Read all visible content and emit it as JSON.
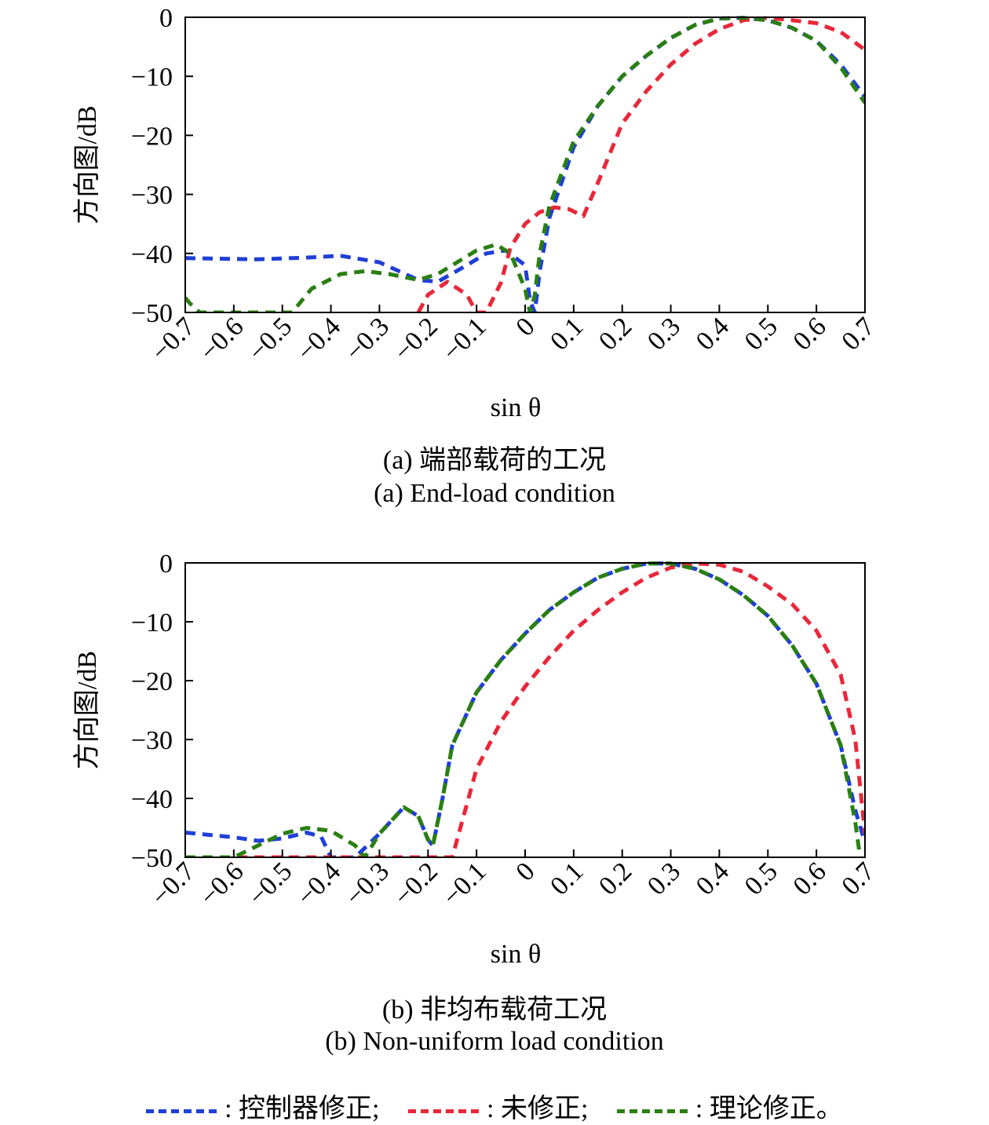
{
  "chart_data": [
    {
      "type": "line",
      "xlabel": "sin θ",
      "ylabel": "方向图/dB",
      "xlim": [
        -0.7,
        0.7
      ],
      "ylim": [
        -50,
        0
      ],
      "xticks": [
        "−0.7",
        "−0.6",
        "−0.5",
        "−0.4",
        "−0.3",
        "−0.2",
        "−0.1",
        "0",
        "0.1",
        "0.2",
        "0.3",
        "0.4",
        "0.5",
        "0.6",
        "0.7"
      ],
      "yticks": [
        "0",
        "−10",
        "−20",
        "−30",
        "−40",
        "−50"
      ],
      "caption_cn": "(a) 端部载荷的工况",
      "caption_en": "(a) End-load condition",
      "series": [
        {
          "name": "控制器修正",
          "color": "#1f3fd6",
          "x": [
            -0.7,
            -0.55,
            -0.45,
            -0.38,
            -0.3,
            -0.22,
            -0.18,
            -0.12,
            -0.08,
            -0.04,
            0,
            0.01,
            0.02,
            0.03,
            0.05,
            0.1,
            0.15,
            0.2,
            0.25,
            0.3,
            0.35,
            0.4,
            0.45,
            0.5,
            0.55,
            0.6,
            0.65,
            0.7
          ],
          "y": [
            -40.8,
            -41,
            -40.7,
            -40.4,
            -41.5,
            -44.5,
            -44.8,
            -42,
            -40,
            -39.5,
            -42,
            -48,
            -50,
            -43,
            -34,
            -22,
            -15,
            -10,
            -6.5,
            -3.5,
            -1.3,
            -0.2,
            -0.1,
            -0.5,
            -1.8,
            -4,
            -8,
            -13.5
          ]
        },
        {
          "name": "未修正",
          "color": "#e8283a",
          "x": [
            -0.22,
            -0.2,
            -0.16,
            -0.12,
            -0.1,
            -0.08,
            -0.05,
            -0.03,
            0,
            0.03,
            0.06,
            0.09,
            0.12,
            0.15,
            0.2,
            0.25,
            0.3,
            0.35,
            0.4,
            0.45,
            0.5,
            0.55,
            0.6,
            0.65,
            0.7
          ],
          "y": [
            -50,
            -47,
            -44.8,
            -47,
            -50,
            -50,
            -45,
            -39,
            -35,
            -33,
            -32.2,
            -32.5,
            -33.7,
            -28,
            -18,
            -12.5,
            -8,
            -4.5,
            -2,
            -0.5,
            -0.1,
            -0.5,
            -1,
            -2.5,
            -5.5
          ]
        },
        {
          "name": "理论修正",
          "color": "#2a7f12",
          "x": [
            -0.7,
            -0.69,
            -0.67,
            -0.48,
            -0.44,
            -0.38,
            -0.33,
            -0.28,
            -0.22,
            -0.18,
            -0.13,
            -0.1,
            -0.06,
            -0.03,
            0,
            0.01,
            0.02,
            0.03,
            0.05,
            0.1,
            0.15,
            0.2,
            0.25,
            0.3,
            0.35,
            0.4,
            0.45,
            0.5,
            0.55,
            0.6,
            0.65,
            0.7
          ],
          "y": [
            -47.5,
            -48.5,
            -50,
            -50,
            -46,
            -43.5,
            -43,
            -43.5,
            -44.5,
            -43.5,
            -41,
            -39.5,
            -38.5,
            -40,
            -46,
            -50,
            -47,
            -40,
            -32,
            -21,
            -15,
            -10,
            -6.5,
            -3.5,
            -1.3,
            -0.2,
            -0.1,
            -0.5,
            -1.8,
            -4,
            -8.5,
            -14.5
          ]
        }
      ]
    },
    {
      "type": "line",
      "xlabel": "sin θ",
      "ylabel": "方向图/dB",
      "xlim": [
        -0.7,
        0.7
      ],
      "ylim": [
        -50,
        0
      ],
      "xticks": [
        "−0.7",
        "−0.6",
        "−0.5",
        "−0.4",
        "−0.3",
        "−0.2",
        "−0.1",
        "0",
        "0.1",
        "0.2",
        "0.3",
        "0.4",
        "0.5",
        "0.6",
        "0.7"
      ],
      "yticks": [
        "0",
        "−10",
        "−20",
        "−30",
        "−40",
        "−50"
      ],
      "caption_cn": "(b) 非均布载荷工况",
      "caption_en": "(b) Non-uniform load condition",
      "series": [
        {
          "name": "控制器修正",
          "color": "#1f3fd6",
          "x": [
            -0.7,
            -0.6,
            -0.55,
            -0.5,
            -0.45,
            -0.42,
            -0.4,
            -0.38,
            -0.35,
            -0.3,
            -0.25,
            -0.22,
            -0.2,
            -0.19,
            -0.17,
            -0.15,
            -0.1,
            -0.05,
            0,
            0.05,
            0.1,
            0.15,
            0.2,
            0.25,
            0.3,
            0.35,
            0.4,
            0.45,
            0.5,
            0.55,
            0.6,
            0.65,
            0.68,
            0.7
          ],
          "y": [
            -45.8,
            -46.6,
            -47.2,
            -46.8,
            -45.8,
            -46.5,
            -50,
            -50,
            -50,
            -46,
            -41.5,
            -43,
            -47,
            -48,
            -40,
            -31,
            -22,
            -16.5,
            -12,
            -8,
            -5,
            -2.5,
            -1,
            -0.1,
            -0.1,
            -1,
            -2.8,
            -5.5,
            -9,
            -14,
            -20.5,
            -31,
            -42,
            -47.5
          ]
        },
        {
          "name": "未修正",
          "color": "#e8283a",
          "x": [
            -0.7,
            -0.15,
            -0.13,
            -0.1,
            -0.05,
            0,
            0.05,
            0.1,
            0.15,
            0.2,
            0.25,
            0.3,
            0.35,
            0.4,
            0.45,
            0.5,
            0.55,
            0.6,
            0.65,
            0.68,
            0.7
          ],
          "y": [
            -50,
            -50,
            -44,
            -35,
            -27,
            -21,
            -16,
            -11.5,
            -8,
            -5,
            -2.5,
            -0.8,
            -0.1,
            -0.3,
            -1.5,
            -4,
            -7,
            -11.5,
            -19,
            -30,
            -46
          ]
        },
        {
          "name": "理论修正",
          "color": "#2a7f12",
          "x": [
            -0.7,
            -0.6,
            -0.55,
            -0.5,
            -0.45,
            -0.4,
            -0.35,
            -0.33,
            -0.3,
            -0.25,
            -0.22,
            -0.2,
            -0.19,
            -0.17,
            -0.15,
            -0.1,
            -0.05,
            0,
            0.05,
            0.1,
            0.15,
            0.2,
            0.25,
            0.3,
            0.35,
            0.4,
            0.45,
            0.5,
            0.55,
            0.6,
            0.65,
            0.68,
            0.69
          ],
          "y": [
            -50,
            -50,
            -48,
            -46,
            -45,
            -45.5,
            -48,
            -50,
            -46,
            -41.5,
            -43,
            -47,
            -48,
            -40,
            -31,
            -22,
            -16.5,
            -12,
            -8,
            -5,
            -2.5,
            -1,
            -0.1,
            -0.1,
            -1,
            -2.8,
            -5.5,
            -9,
            -14,
            -20.5,
            -31,
            -44,
            -50
          ]
        }
      ]
    }
  ],
  "legend": [
    {
      "label": ": 控制器修正;",
      "color": "#1f3fd6"
    },
    {
      "label": ": 未修正;",
      "color": "#e8283a"
    },
    {
      "label": ": 理论修正。",
      "color": "#2a7f12"
    }
  ]
}
